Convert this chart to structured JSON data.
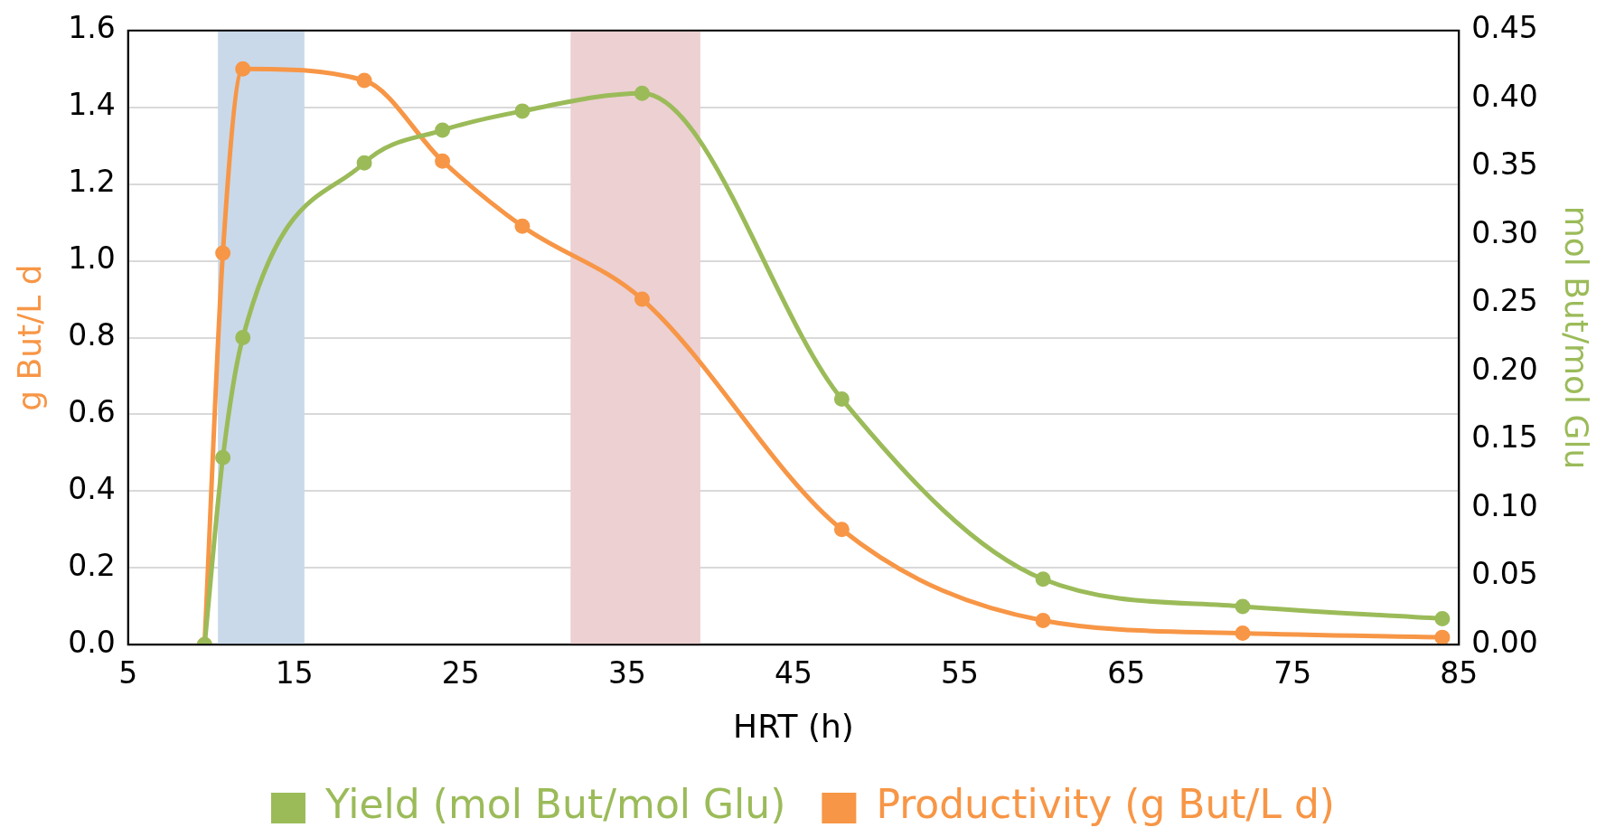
{
  "chart_data": {
    "type": "line",
    "xlabel": "HRT (h)",
    "ylabel": "g But/L d",
    "y2label": "mol But/mol Glu",
    "xlim": [
      5,
      85
    ],
    "xticks": [
      5,
      15,
      25,
      35,
      45,
      55,
      65,
      75,
      85
    ],
    "ylim": [
      0,
      1.6
    ],
    "yticks": [
      {
        "value": 0,
        "label": "0.0"
      },
      {
        "value": 0.2,
        "label": "0.2"
      },
      {
        "value": 0.4,
        "label": "0.4"
      },
      {
        "value": 0.6,
        "label": "0.6"
      },
      {
        "value": 0.8,
        "label": "0.8"
      },
      {
        "value": 1,
        "label": "1.0"
      },
      {
        "value": 1.2,
        "label": "1.2"
      },
      {
        "value": 1.4,
        "label": "1.4"
      },
      {
        "value": 1.6,
        "label": "1.6"
      }
    ],
    "y2lim": [
      0,
      0.45
    ],
    "y2ticks": [
      {
        "value": 0,
        "label": "0.00"
      },
      {
        "value": 0.05,
        "label": "0.05"
      },
      {
        "value": 0.1,
        "label": "0.10"
      },
      {
        "value": 0.15,
        "label": "0.15"
      },
      {
        "value": 0.2,
        "label": "0.20"
      },
      {
        "value": 0.25,
        "label": "0.25"
      },
      {
        "value": 0.3,
        "label": "0.30"
      },
      {
        "value": 0.35,
        "label": "0.35"
      },
      {
        "value": 0.4,
        "label": "0.40"
      },
      {
        "value": 0.45,
        "label": "0.45"
      }
    ],
    "x": [
      9.6,
      10.7,
      11.9,
      19.2,
      23.9,
      28.7,
      35.9,
      47.9,
      60,
      72,
      84
    ],
    "series": [
      {
        "name": "Yield (mol But/mol Glu)",
        "color": "#9bbb59",
        "axis": "y2",
        "values": [
          0,
          0.137,
          0.225,
          0.353,
          0.377,
          0.391,
          0.404,
          0.18,
          0.048,
          0.028,
          0.019
        ]
      },
      {
        "name": "Productivity (g But/L d)",
        "color": "#f79646",
        "values": [
          0,
          1.02,
          1.5,
          1.47,
          1.26,
          1.09,
          0.9,
          0.3,
          0.063,
          0.03,
          0.019
        ]
      }
    ],
    "bands": [
      {
        "axis": "x",
        "from": 10.4,
        "to": 15.6,
        "color": "#c9d9ea"
      },
      {
        "axis": "x",
        "from": 31.6,
        "to": 39.4,
        "color": "#ecd0d2"
      }
    ],
    "grid": "y",
    "legend": "bottom",
    "marker": "circle",
    "line_style": "solid"
  }
}
